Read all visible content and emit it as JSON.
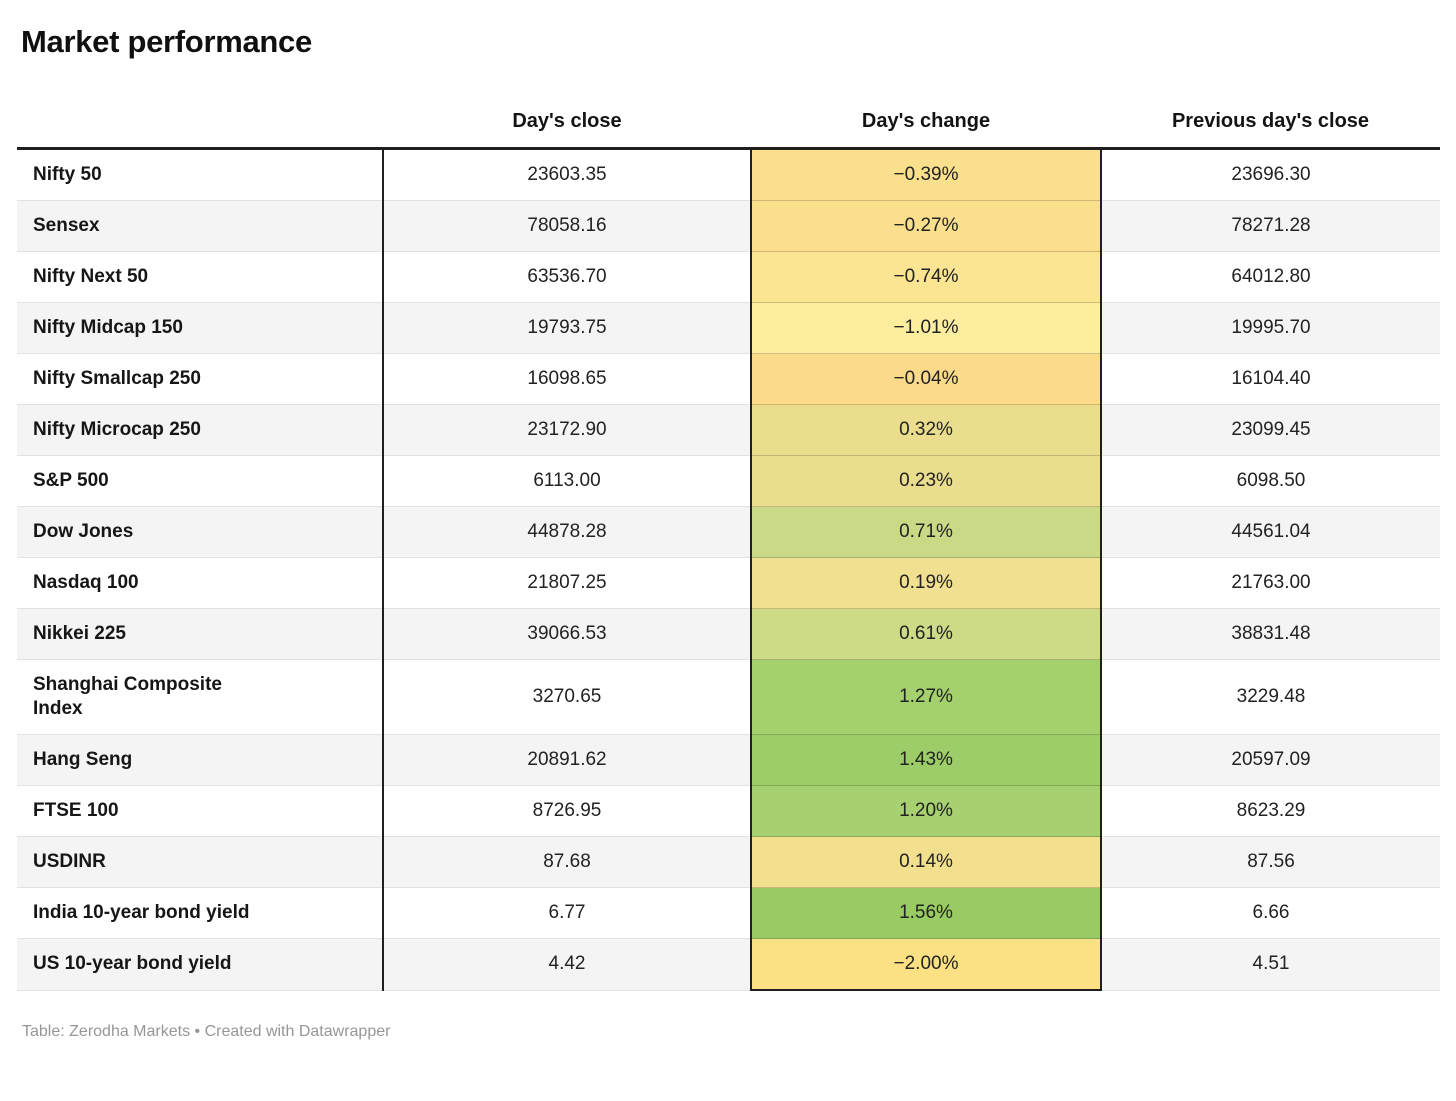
{
  "chart_data": {
    "type": "table",
    "title": "Market performance",
    "columns": [
      "",
      "Day's close",
      "Day's change",
      "Previous day's close"
    ],
    "legend_note": "Day's change cell color scale: yellow = negative, green = positive",
    "accent_colors": {
      "negative_yellow": "#fadf8d",
      "positive_green": "#98cb63"
    },
    "rows": [
      {
        "label": "Nifty 50",
        "close": "23603.35",
        "change": "−0.39%",
        "prev": "23696.30",
        "change_bg": "#fadf8d"
      },
      {
        "label": "Sensex",
        "close": "78058.16",
        "change": "−0.27%",
        "prev": "78271.28",
        "change_bg": "#fadf8d"
      },
      {
        "label": "Nifty Next 50",
        "close": "63536.70",
        "change": "−0.74%",
        "prev": "64012.80",
        "change_bg": "#fbe492"
      },
      {
        "label": "Nifty Midcap 150",
        "close": "19793.75",
        "change": "−1.01%",
        "prev": "19995.70",
        "change_bg": "#fdee9f"
      },
      {
        "label": "Nifty Smallcap 250",
        "close": "16098.65",
        "change": "−0.04%",
        "prev": "16104.40",
        "change_bg": "#fbda89"
      },
      {
        "label": "Nifty Microcap 250",
        "close": "23172.90",
        "change": "0.32%",
        "prev": "23099.45",
        "change_bg": "#eadd8e"
      },
      {
        "label": "S&P 500",
        "close": "6113.00",
        "change": "0.23%",
        "prev": "6098.50",
        "change_bg": "#eadd8e"
      },
      {
        "label": "Dow Jones",
        "close": "44878.28",
        "change": "0.71%",
        "prev": "44561.04",
        "change_bg": "#c9d985"
      },
      {
        "label": "Nasdaq 100",
        "close": "21807.25",
        "change": "0.19%",
        "prev": "21763.00",
        "change_bg": "#f1e090"
      },
      {
        "label": "Nikkei 225",
        "close": "39066.53",
        "change": "0.61%",
        "prev": "38831.48",
        "change_bg": "#cdda86"
      },
      {
        "label": "Shanghai Composite\nIndex",
        "close": "3270.65",
        "change": "1.27%",
        "prev": "3229.48",
        "change_bg": "#a5d06e"
      },
      {
        "label": "Hang Seng",
        "close": "20891.62",
        "change": "1.43%",
        "prev": "20597.09",
        "change_bg": "#9dcd68"
      },
      {
        "label": "FTSE 100",
        "close": "8726.95",
        "change": "1.20%",
        "prev": "8623.29",
        "change_bg": "#a7d170"
      },
      {
        "label": "USDINR",
        "close": "87.68",
        "change": "0.14%",
        "prev": "87.56",
        "change_bg": "#f3e08f"
      },
      {
        "label": "India 10-year bond yield",
        "close": "6.77",
        "change": "1.56%",
        "prev": "6.66",
        "change_bg": "#98cb63"
      },
      {
        "label": "US 10-year bond yield",
        "close": "4.42",
        "change": "−2.00%",
        "prev": "4.51",
        "change_bg": "#fbe184"
      }
    ],
    "footer": "Table: Zerodha Markets • Created with Datawrapper"
  }
}
